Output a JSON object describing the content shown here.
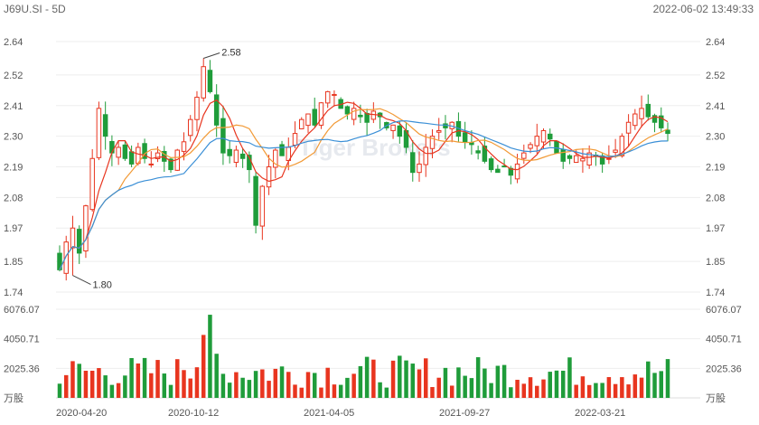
{
  "header": {
    "symbol_label": "J69U.SI - 5D",
    "timestamp": "2022-06-02 13:49:33"
  },
  "watermark": "Tiger Brokers",
  "colors": {
    "up": "#e8351f",
    "down": "#1f9c3a",
    "ma5": "#e8351f",
    "ma10": "#f29a36",
    "ma20": "#3a8fd6",
    "grid": "#eeeeee",
    "text": "#555555"
  },
  "chart_data": {
    "type": "candlestick",
    "title": "J69U.SI - 5D",
    "price_axis": {
      "ticks": [
        2.64,
        2.52,
        2.41,
        2.3,
        2.19,
        2.08,
        1.97,
        1.85,
        1.74
      ],
      "ylim": [
        1.74,
        2.64
      ]
    },
    "volume_axis": {
      "ticks": [
        6076.07,
        4050.71,
        2025.36
      ],
      "unit_label": "万股",
      "ylim": [
        0,
        6076.07
      ]
    },
    "x_ticks": [
      "2020-04-20",
      "2020-10-12",
      "2021-04-05",
      "2021-09-27",
      "2022-03-21"
    ],
    "annotations": [
      {
        "label": "2.58",
        "value": 2.58,
        "type": "high"
      },
      {
        "label": "1.80",
        "value": 1.8,
        "type": "low"
      }
    ],
    "close_path": [
      1.82,
      1.92,
      1.97,
      1.88,
      2.05,
      2.22,
      2.4,
      2.3,
      2.24,
      2.26,
      2.22,
      2.2,
      2.26,
      2.22,
      2.2,
      2.24,
      2.21,
      2.18,
      2.25,
      2.28,
      2.36,
      2.44,
      2.55,
      2.46,
      2.34,
      2.24,
      2.23,
      2.25,
      2.22,
      2.18,
      1.98,
      2.12,
      2.19,
      2.25,
      2.23,
      2.26,
      2.31,
      2.36,
      2.38,
      2.34,
      2.42,
      2.46,
      2.45,
      2.4,
      2.38,
      2.4,
      2.37,
      2.35,
      2.39,
      2.37,
      2.33,
      2.34,
      2.3,
      2.26,
      2.17,
      2.2,
      2.26,
      2.3,
      2.32,
      2.33,
      2.35,
      2.3,
      2.28,
      2.27,
      2.24,
      2.21,
      2.18,
      2.17,
      2.19,
      2.16,
      2.2,
      2.24,
      2.27,
      2.3,
      2.32,
      2.29,
      2.24,
      2.21,
      2.22,
      2.23,
      2.22,
      2.24,
      2.23,
      2.2,
      2.22,
      2.25,
      2.3,
      2.35,
      2.38,
      2.4,
      2.37,
      2.35,
      2.33,
      2.31
    ],
    "last_close": 2.31,
    "price_range_shown": [
      1.8,
      2.58
    ],
    "volume_peak_approx": 5700
  }
}
